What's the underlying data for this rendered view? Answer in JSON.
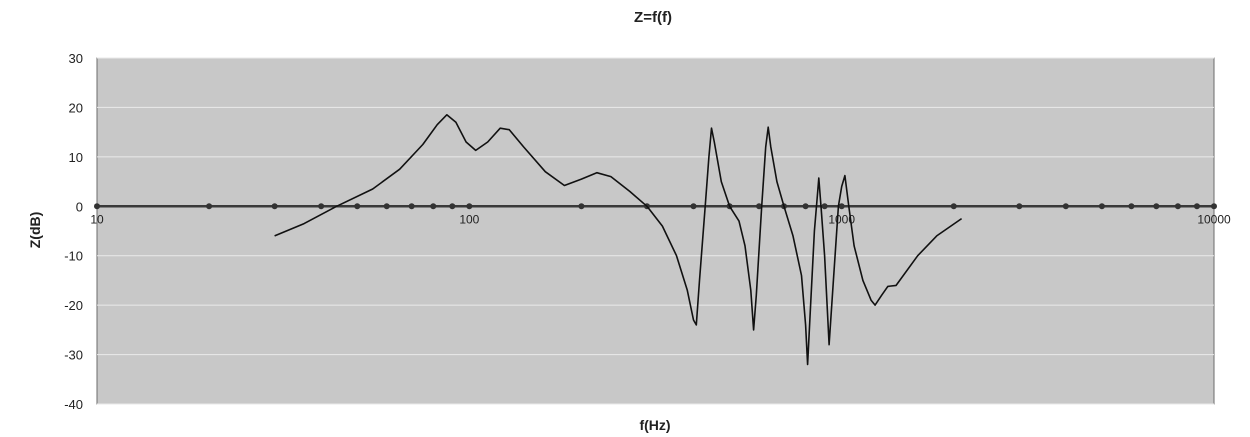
{
  "chart_data": {
    "type": "line",
    "title": "Z=f(f)",
    "xlabel": "f(Hz)",
    "ylabel": "Z(dB)",
    "x_scale": "log",
    "xlim": [
      10,
      10000
    ],
    "ylim": [
      -40,
      30
    ],
    "y_ticks": [
      "30",
      "20",
      "10",
      "0",
      "-10",
      "-20",
      "-30",
      "-40"
    ],
    "x_tick_labels": [
      {
        "value": 10,
        "label": "10"
      },
      {
        "value": 100,
        "label": "100"
      },
      {
        "value": 1000,
        "label": "1000"
      },
      {
        "value": 10000,
        "label": "10000"
      }
    ],
    "x_axis_markers": [
      10,
      20,
      30,
      40,
      50,
      60,
      70,
      80,
      90,
      100,
      200,
      300,
      400,
      500,
      600,
      700,
      800,
      900,
      1000,
      2000,
      3000,
      4000,
      5000,
      6000,
      7000,
      8000,
      9000,
      10000
    ],
    "grid": true,
    "legend": "none",
    "colors": {
      "plot_bg": "#c8c8c8",
      "line": "#111111",
      "grid": "#eaeaea"
    },
    "series": [
      {
        "points": [
          [
            30,
            -6
          ],
          [
            36,
            -3.5
          ],
          [
            44,
            0
          ],
          [
            55,
            3.5
          ],
          [
            65,
            7.5
          ],
          [
            75,
            12.5
          ],
          [
            82,
            16.5
          ],
          [
            87,
            18.5
          ],
          [
            92,
            17
          ],
          [
            98,
            13
          ],
          [
            104,
            11.3
          ],
          [
            112,
            13
          ],
          [
            121,
            15.8
          ],
          [
            128,
            15.5
          ],
          [
            140,
            12
          ],
          [
            160,
            7
          ],
          [
            180,
            4.2
          ],
          [
            200,
            5.5
          ],
          [
            220,
            6.8
          ],
          [
            240,
            6
          ],
          [
            270,
            3
          ],
          [
            300,
            0
          ],
          [
            330,
            -4
          ],
          [
            360,
            -10
          ],
          [
            385,
            -17
          ],
          [
            400,
            -23
          ],
          [
            407,
            -24
          ],
          [
            415,
            -15
          ],
          [
            430,
            0
          ],
          [
            440,
            10
          ],
          [
            447,
            15.8
          ],
          [
            455,
            13
          ],
          [
            475,
            5
          ],
          [
            500,
            0
          ],
          [
            530,
            -3
          ],
          [
            550,
            -8
          ],
          [
            570,
            -17
          ],
          [
            580,
            -25
          ],
          [
            590,
            -18
          ],
          [
            610,
            0
          ],
          [
            625,
            12
          ],
          [
            635,
            16
          ],
          [
            645,
            12
          ],
          [
            670,
            5
          ],
          [
            700,
            0
          ],
          [
            740,
            -6
          ],
          [
            780,
            -14
          ],
          [
            800,
            -24
          ],
          [
            810,
            -32
          ],
          [
            825,
            -20
          ],
          [
            845,
            -5
          ],
          [
            860,
            2
          ],
          [
            868,
            5.7
          ],
          [
            880,
            0
          ],
          [
            900,
            -10
          ],
          [
            925,
            -28
          ],
          [
            950,
            -15
          ],
          [
            980,
            0
          ],
          [
            1000,
            4
          ],
          [
            1020,
            6.2
          ],
          [
            1045,
            0
          ],
          [
            1080,
            -8
          ],
          [
            1140,
            -15
          ],
          [
            1200,
            -19
          ],
          [
            1230,
            -20
          ],
          [
            1280,
            -18
          ],
          [
            1330,
            -16.2
          ],
          [
            1400,
            -16
          ],
          [
            1600,
            -10
          ],
          [
            1800,
            -6
          ],
          [
            2100,
            -2.5
          ]
        ]
      }
    ]
  }
}
